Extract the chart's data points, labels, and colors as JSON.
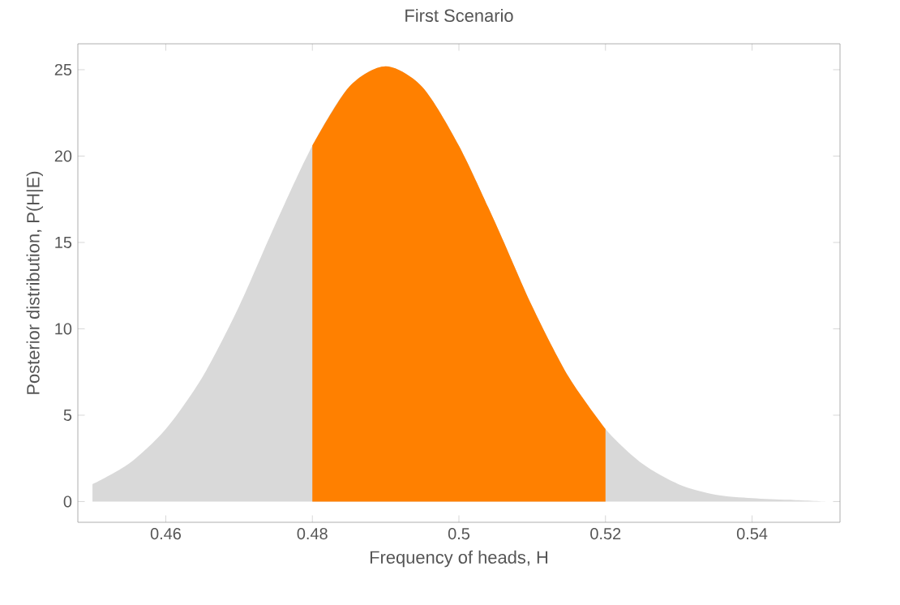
{
  "chart_data": {
    "type": "area",
    "title": "First Scenario",
    "xlabel": "Frequency of heads, H",
    "ylabel": "Posterior distribution, P(H|E)",
    "xlim": [
      0.448,
      0.552
    ],
    "ylim": [
      -1.2,
      26.5
    ],
    "xticks": [
      0.46,
      0.48,
      0.5,
      0.52,
      0.54
    ],
    "yticks": [
      0,
      5,
      10,
      15,
      20,
      25
    ],
    "series": [
      {
        "color": "#d9d9d9",
        "x": [
          0.45,
          0.455,
          0.46,
          0.465,
          0.47,
          0.475,
          0.48,
          0.485,
          0.49,
          0.495,
          0.5,
          0.505,
          0.51,
          0.515,
          0.52,
          0.525,
          0.53,
          0.535,
          0.54,
          0.545,
          0.55
        ],
        "values": [
          1,
          2.2,
          4.2,
          7.2,
          11.3,
          16.1,
          20.6,
          24,
          25.2,
          24,
          20.6,
          16.1,
          11.3,
          7.2,
          4.2,
          2.2,
          1,
          0.4,
          0.2,
          0.1,
          0
        ]
      },
      {
        "color": "#ff8000",
        "x": [
          0.48,
          0.485,
          0.49,
          0.495,
          0.5,
          0.505,
          0.51,
          0.515,
          0.52
        ],
        "values": [
          20.6,
          24,
          25.2,
          24,
          20.6,
          16.1,
          11.3,
          7.2,
          4.2
        ]
      }
    ]
  }
}
